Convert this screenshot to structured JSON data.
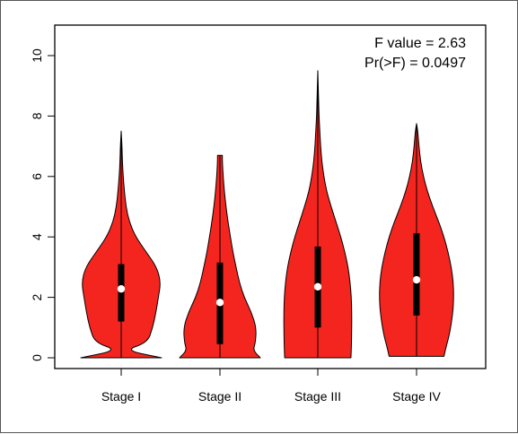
{
  "chart_data": {
    "type": "violin",
    "title": "",
    "xlabel": "",
    "ylabel": "",
    "ylim": [
      -0.3,
      10.8
    ],
    "yticks": [
      0,
      2,
      4,
      6,
      8,
      10
    ],
    "ytick_labels": [
      "0",
      "2",
      "4",
      "6",
      "8",
      "10"
    ],
    "categories": [
      "Stage I",
      "Stage II",
      "Stage III",
      "Stage IV"
    ],
    "fill_color": "#f4251f",
    "stats": {
      "f_value_text": "F value = 2.63",
      "p_value_text": "Pr(>F) = 0.0497"
    },
    "violins": [
      {
        "name": "Stage I",
        "median": 2.28,
        "q1": 1.2,
        "q3": 3.1,
        "min": 0.0,
        "max": 7.5,
        "density": [
          [
            0,
            1.0
          ],
          [
            0.25,
            0.08
          ],
          [
            0.5,
            0.65
          ],
          [
            1,
            0.78
          ],
          [
            1.5,
            0.86
          ],
          [
            2,
            0.92
          ],
          [
            2.5,
            0.98
          ],
          [
            3,
            0.88
          ],
          [
            3.5,
            0.62
          ],
          [
            4,
            0.36
          ],
          [
            4.5,
            0.2
          ],
          [
            5,
            0.12
          ],
          [
            5.5,
            0.08
          ],
          [
            6,
            0.05
          ],
          [
            6.5,
            0.03
          ],
          [
            7,
            0.02
          ],
          [
            7.5,
            0.0
          ]
        ]
      },
      {
        "name": "Stage II",
        "median": 1.83,
        "q1": 0.45,
        "q3": 3.15,
        "min": 0.0,
        "max": 6.7,
        "density": [
          [
            0,
            1.0
          ],
          [
            0.25,
            0.82
          ],
          [
            0.5,
            0.88
          ],
          [
            1,
            0.9
          ],
          [
            1.5,
            0.78
          ],
          [
            2,
            0.6
          ],
          [
            2.5,
            0.48
          ],
          [
            3,
            0.4
          ],
          [
            3.5,
            0.32
          ],
          [
            4,
            0.26
          ],
          [
            4.5,
            0.2
          ],
          [
            5,
            0.15
          ],
          [
            5.5,
            0.11
          ],
          [
            6,
            0.08
          ],
          [
            6.5,
            0.06
          ],
          [
            6.7,
            0.06
          ]
        ]
      },
      {
        "name": "Stage III",
        "median": 2.35,
        "q1": 1.0,
        "q3": 3.68,
        "min": 0.0,
        "max": 9.5,
        "density": [
          [
            0,
            0.82
          ],
          [
            0.3,
            0.83
          ],
          [
            1,
            0.84
          ],
          [
            1.5,
            0.84
          ],
          [
            2,
            0.83
          ],
          [
            2.5,
            0.8
          ],
          [
            3,
            0.75
          ],
          [
            3.5,
            0.67
          ],
          [
            4,
            0.57
          ],
          [
            4.5,
            0.45
          ],
          [
            5,
            0.33
          ],
          [
            5.5,
            0.22
          ],
          [
            6,
            0.15
          ],
          [
            6.5,
            0.1
          ],
          [
            7,
            0.07
          ],
          [
            7.5,
            0.05
          ],
          [
            8,
            0.03
          ],
          [
            8.5,
            0.02
          ],
          [
            9,
            0.01
          ],
          [
            9.5,
            0.0
          ]
        ]
      },
      {
        "name": "Stage IV",
        "median": 2.58,
        "q1": 1.4,
        "q3": 4.12,
        "min": 0.05,
        "max": 7.75,
        "density": [
          [
            0.05,
            0.68
          ],
          [
            0.3,
            0.72
          ],
          [
            0.8,
            0.82
          ],
          [
            1.5,
            0.9
          ],
          [
            2,
            0.92
          ],
          [
            2.5,
            0.91
          ],
          [
            3,
            0.86
          ],
          [
            3.5,
            0.78
          ],
          [
            4,
            0.68
          ],
          [
            4.5,
            0.55
          ],
          [
            5,
            0.4
          ],
          [
            5.5,
            0.27
          ],
          [
            6,
            0.17
          ],
          [
            6.5,
            0.1
          ],
          [
            7,
            0.06
          ],
          [
            7.5,
            0.03
          ],
          [
            7.75,
            0.0
          ]
        ]
      }
    ]
  }
}
